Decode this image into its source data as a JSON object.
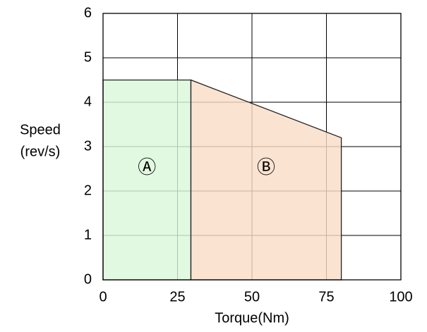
{
  "chart_data": {
    "type": "area",
    "xlabel": "Torque(Nm)",
    "ylabel": [
      "Speed",
      "(rev/s)"
    ],
    "series": [
      {
        "name": "Ⓐ",
        "color": "#daf8da",
        "x": [
          0,
          29.5
        ],
        "values": [
          4.5,
          4.5
        ]
      },
      {
        "name": "Ⓑ",
        "color": "#fadcc6",
        "x": [
          29.5,
          80
        ],
        "values": [
          4.5,
          3.2
        ]
      }
    ],
    "xlim": [
      0,
      100
    ],
    "xticks": [
      0,
      25,
      50,
      75,
      100
    ],
    "ylim": [
      0,
      6
    ],
    "yticks": [
      0,
      1,
      2,
      3,
      4,
      5,
      6
    ],
    "grid": true
  }
}
